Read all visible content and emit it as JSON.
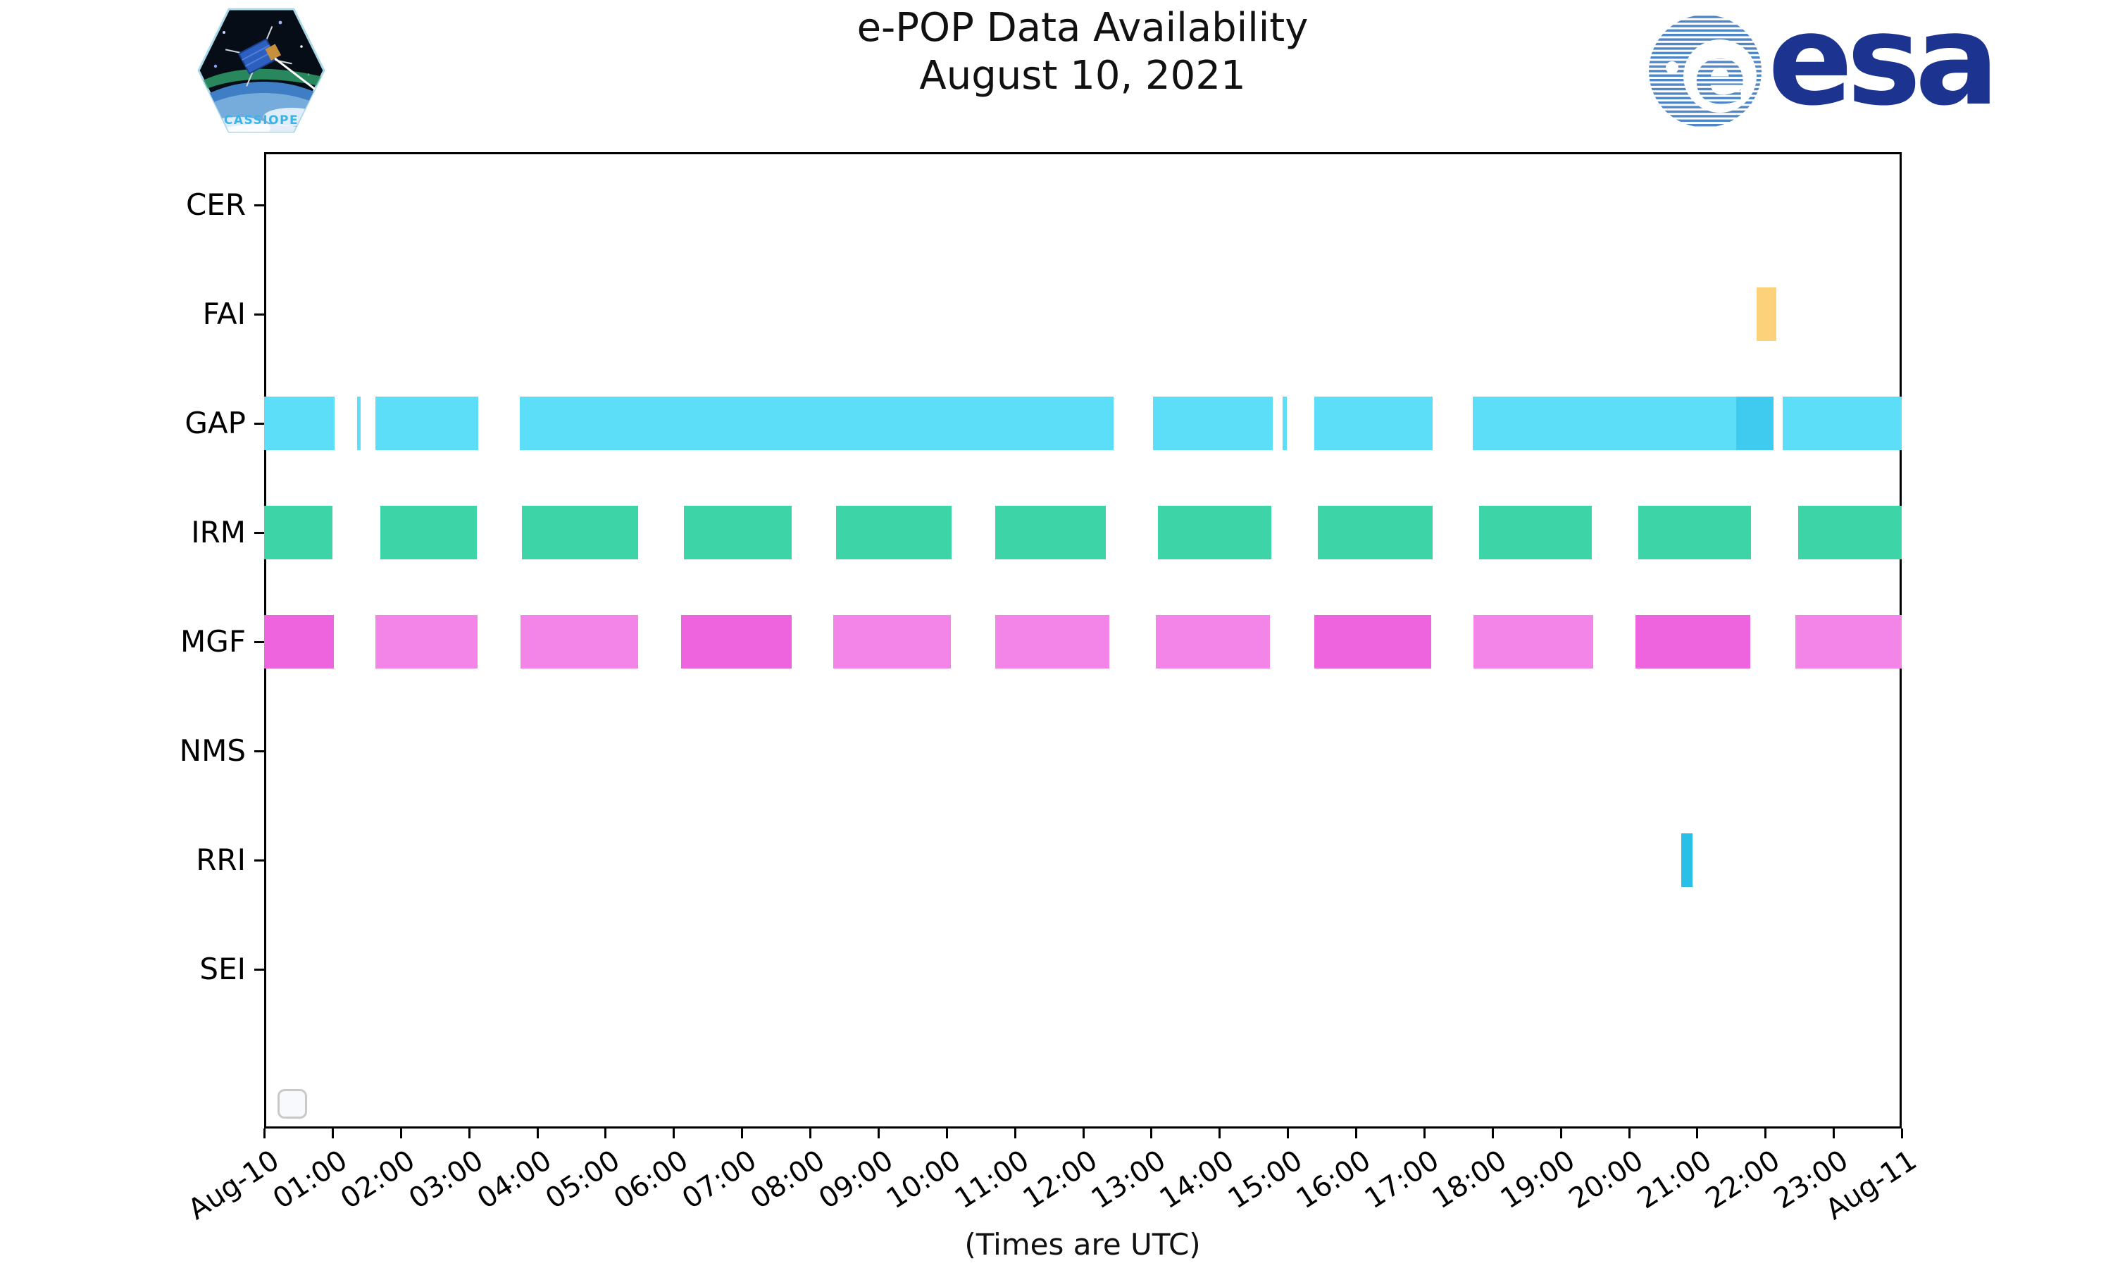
{
  "header": {
    "title_line1": "e-POP Data Availability",
    "title_line2": "August 10, 2021",
    "cassiope_patch_label": "CASSIOPE",
    "esa_logo_text": "esa"
  },
  "chart_data": {
    "type": "gantt-availability",
    "title": "e-POP Data Availability",
    "subtitle": "August 10, 2021",
    "xlabel": "(Times are UTC)",
    "x_axis": {
      "start": "Aug-10 00:00",
      "end": "Aug-11 00:00",
      "hours_total": 24,
      "tick_labels": [
        "Aug-10",
        "01:00",
        "02:00",
        "03:00",
        "04:00",
        "05:00",
        "06:00",
        "07:00",
        "08:00",
        "09:00",
        "10:00",
        "11:00",
        "12:00",
        "13:00",
        "14:00",
        "15:00",
        "16:00",
        "17:00",
        "18:00",
        "19:00",
        "20:00",
        "21:00",
        "22:00",
        "23:00",
        "Aug-11"
      ],
      "tick_label_rotation_deg": 33
    },
    "rows": [
      "CER",
      "FAI",
      "GAP",
      "IRM",
      "MGF",
      "NMS",
      "RRI",
      "SEI"
    ],
    "colors": {
      "gap_light": "#5CDEF8",
      "gap_dark": "#3FCBF0",
      "irm": "#3DD4A8",
      "mgf_light": "#F285E7",
      "mgf_dark": "#EE64DE",
      "fai": "#FBD17A",
      "rri": "#29BFE6"
    },
    "intervals": {
      "CER": [],
      "FAI": [
        {
          "start_h": 21.87,
          "end_h": 22.16,
          "color": "fai"
        }
      ],
      "GAP": [
        {
          "start_h": 0.0,
          "end_h": 1.03,
          "color": "gap_light"
        },
        {
          "start_h": 1.36,
          "end_h": 1.41,
          "color": "gap_light"
        },
        {
          "start_h": 1.63,
          "end_h": 3.14,
          "color": "gap_light"
        },
        {
          "start_h": 3.75,
          "end_h": 12.45,
          "color": "gap_light"
        },
        {
          "start_h": 13.03,
          "end_h": 14.78,
          "color": "gap_light"
        },
        {
          "start_h": 14.93,
          "end_h": 14.99,
          "color": "gap_light"
        },
        {
          "start_h": 15.39,
          "end_h": 17.13,
          "color": "gap_light"
        },
        {
          "start_h": 17.71,
          "end_h": 21.57,
          "color": "gap_light"
        },
        {
          "start_h": 21.57,
          "end_h": 22.12,
          "color": "gap_dark"
        },
        {
          "start_h": 22.26,
          "end_h": 24.0,
          "color": "gap_light"
        }
      ],
      "IRM": [
        {
          "start_h": 0.0,
          "end_h": 1.0,
          "color": "irm"
        },
        {
          "start_h": 1.7,
          "end_h": 3.12,
          "color": "irm"
        },
        {
          "start_h": 3.78,
          "end_h": 5.48,
          "color": "irm"
        },
        {
          "start_h": 6.15,
          "end_h": 7.73,
          "color": "irm"
        },
        {
          "start_h": 8.38,
          "end_h": 10.07,
          "color": "irm"
        },
        {
          "start_h": 10.71,
          "end_h": 12.34,
          "color": "irm"
        },
        {
          "start_h": 13.1,
          "end_h": 14.76,
          "color": "irm"
        },
        {
          "start_h": 15.44,
          "end_h": 17.12,
          "color": "irm"
        },
        {
          "start_h": 17.81,
          "end_h": 19.46,
          "color": "irm"
        },
        {
          "start_h": 20.14,
          "end_h": 21.79,
          "color": "irm"
        },
        {
          "start_h": 22.48,
          "end_h": 24.0,
          "color": "irm"
        }
      ],
      "MGF": [
        {
          "start_h": 0.0,
          "end_h": 1.02,
          "color": "mgf_dark"
        },
        {
          "start_h": 1.63,
          "end_h": 3.13,
          "color": "mgf_light"
        },
        {
          "start_h": 3.76,
          "end_h": 5.48,
          "color": "mgf_light"
        },
        {
          "start_h": 6.11,
          "end_h": 7.73,
          "color": "mgf_dark"
        },
        {
          "start_h": 8.34,
          "end_h": 10.06,
          "color": "mgf_light"
        },
        {
          "start_h": 10.71,
          "end_h": 12.39,
          "color": "mgf_light"
        },
        {
          "start_h": 13.07,
          "end_h": 14.74,
          "color": "mgf_light"
        },
        {
          "start_h": 15.39,
          "end_h": 17.1,
          "color": "mgf_dark"
        },
        {
          "start_h": 17.72,
          "end_h": 19.48,
          "color": "mgf_light"
        },
        {
          "start_h": 20.1,
          "end_h": 21.78,
          "color": "mgf_dark"
        },
        {
          "start_h": 22.44,
          "end_h": 24.0,
          "color": "mgf_light"
        }
      ],
      "NMS": [],
      "RRI": [
        {
          "start_h": 20.77,
          "end_h": 20.93,
          "color": "rri"
        }
      ],
      "SEI": []
    },
    "legend": {
      "visible": true,
      "entries": []
    },
    "grid": false,
    "plot_background": "#ffffff",
    "axis_color": "#000000"
  },
  "footer": {
    "xaxis_caption": "(Times are UTC)"
  }
}
